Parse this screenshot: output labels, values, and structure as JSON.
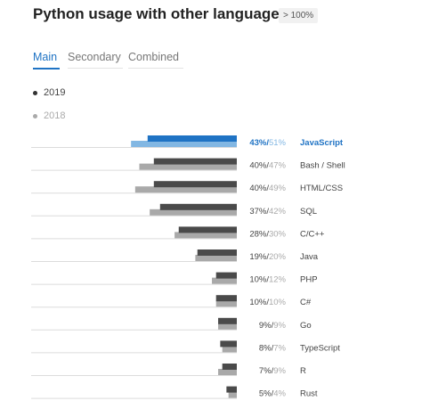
{
  "title": "Python usage with other languages",
  "badge": "> 100%",
  "tabs": [
    {
      "label": "Main",
      "active": true
    },
    {
      "label": "Secondary",
      "active": false
    },
    {
      "label": "Combined",
      "active": false
    }
  ],
  "colors": {
    "accent": "#1f73c4",
    "accent_light": "#82b7e3",
    "series_2019": "#4a4a4a",
    "series_2018": "#a9a9a9"
  },
  "chart_data": {
    "type": "bar",
    "orientation": "horizontal",
    "categories": [
      "JavaScript",
      "Bash / Shell",
      "HTML/CSS",
      "SQL",
      "C/C++",
      "Java",
      "PHP",
      "C#",
      "Go",
      "TypeScript",
      "R",
      "Rust"
    ],
    "series": [
      {
        "name": "2019",
        "values": [
          43,
          40,
          40,
          37,
          28,
          19,
          10,
          10,
          9,
          8,
          7,
          5
        ]
      },
      {
        "name": "2018",
        "values": [
          51,
          47,
          49,
          42,
          30,
          20,
          12,
          10,
          9,
          7,
          9,
          4
        ]
      }
    ],
    "labels": [
      "43%/51%",
      "40%/47%",
      "40%/49%",
      "37%/42%",
      "28%/30%",
      "19%/20%",
      "10%/12%",
      "10%/10%",
      "9%/9%",
      "8%/7%",
      "7%/9%",
      "5%/4%"
    ],
    "highlighted": "JavaScript",
    "legend_position": "top-left",
    "unit": "%"
  }
}
